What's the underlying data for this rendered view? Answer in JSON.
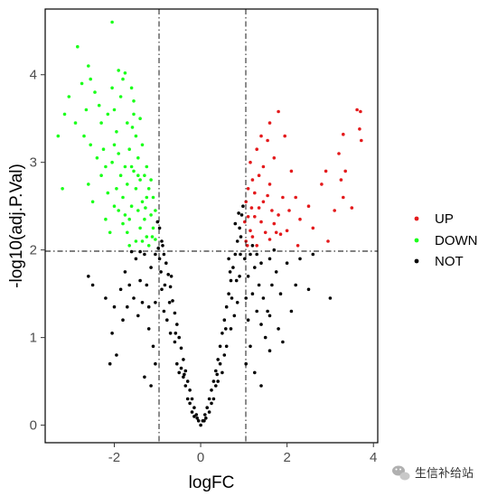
{
  "chart_data": {
    "type": "scatter",
    "title": "",
    "xlabel": "logFC",
    "ylabel": "-log10(adj.P.Val)",
    "xlim": [
      -3.6,
      4.1
    ],
    "ylim": [
      -0.2,
      4.75
    ],
    "xticks": [
      -2,
      0,
      2,
      4
    ],
    "yticks": [
      0,
      1,
      2,
      3,
      4
    ],
    "xtick_labels": [
      "-2",
      "0",
      "2",
      "4"
    ],
    "ytick_labels": [
      "0",
      "1",
      "2",
      "3",
      "4"
    ],
    "grid": false,
    "thresholds": {
      "vertical_lines": [
        -1,
        1
      ],
      "horizontal_line": 2
    },
    "legend": {
      "position": "right",
      "entries": [
        {
          "label": "UP",
          "color": "#e41a1c"
        },
        {
          "label": "DOWN",
          "color": "#1aff1a"
        },
        {
          "label": "NOT",
          "color": "#000000"
        }
      ]
    },
    "series": [
      {
        "name": "UP",
        "color": "#e41a1c",
        "points": [
          [
            3.7,
            3.58
          ],
          [
            3.62,
            3.6
          ],
          [
            3.68,
            3.38
          ],
          [
            3.72,
            3.25
          ],
          [
            3.3,
            3.32
          ],
          [
            3.2,
            3.1
          ],
          [
            3.35,
            2.9
          ],
          [
            3.25,
            2.8
          ],
          [
            3.3,
            2.6
          ],
          [
            3.5,
            2.48
          ],
          [
            2.9,
            2.9
          ],
          [
            2.8,
            2.75
          ],
          [
            3.1,
            2.45
          ],
          [
            2.95,
            2.1
          ],
          [
            2.6,
            2.25
          ],
          [
            1.95,
            3.3
          ],
          [
            1.8,
            3.58
          ],
          [
            1.6,
            3.45
          ],
          [
            1.55,
            3.25
          ],
          [
            1.4,
            3.3
          ],
          [
            1.3,
            3.15
          ],
          [
            1.7,
            3.05
          ],
          [
            1.6,
            2.75
          ],
          [
            2.1,
            2.9
          ],
          [
            2.2,
            2.6
          ],
          [
            2.05,
            2.45
          ],
          [
            1.15,
            3.0
          ],
          [
            1.2,
            2.8
          ],
          [
            1.05,
            2.55
          ],
          [
            1.1,
            2.38
          ],
          [
            1.25,
            2.65
          ],
          [
            1.35,
            2.48
          ],
          [
            1.4,
            2.32
          ],
          [
            1.5,
            2.2
          ],
          [
            1.6,
            2.12
          ],
          [
            1.7,
            2.3
          ],
          [
            1.8,
            2.4
          ],
          [
            1.85,
            2.18
          ],
          [
            2.25,
            2.05
          ],
          [
            1.05,
            2.1
          ],
          [
            1.15,
            2.22
          ],
          [
            1.3,
            2.05
          ],
          [
            1.45,
            2.55
          ],
          [
            1.55,
            2.62
          ],
          [
            1.9,
            2.6
          ],
          [
            2.0,
            2.22
          ],
          [
            1.25,
            2.38
          ],
          [
            1.65,
            2.45
          ],
          [
            1.2,
            2.15
          ],
          [
            1.1,
            2.7
          ],
          [
            1.35,
            2.85
          ],
          [
            1.45,
            2.95
          ],
          [
            1.75,
            2.2
          ],
          [
            2.3,
            2.35
          ],
          [
            2.5,
            2.5
          ],
          [
            1.02,
            2.32
          ],
          [
            1.08,
            2.05
          ],
          [
            1.18,
            2.48
          ]
        ]
      },
      {
        "name": "DOWN",
        "color": "#1aff1a",
        "points": [
          [
            -2.05,
            4.6
          ],
          [
            -2.85,
            4.32
          ],
          [
            -3.3,
            3.3
          ],
          [
            -3.2,
            2.7
          ],
          [
            -3.15,
            3.55
          ],
          [
            -3.05,
            3.75
          ],
          [
            -2.9,
            3.45
          ],
          [
            -2.75,
            3.9
          ],
          [
            -2.6,
            4.1
          ],
          [
            -2.55,
            3.95
          ],
          [
            -2.65,
            3.6
          ],
          [
            -2.55,
            3.2
          ],
          [
            -2.6,
            2.75
          ],
          [
            -2.5,
            2.55
          ],
          [
            -2.45,
            3.8
          ],
          [
            -2.35,
            3.65
          ],
          [
            -2.3,
            3.45
          ],
          [
            -2.25,
            3.15
          ],
          [
            -2.2,
            2.95
          ],
          [
            -2.15,
            2.65
          ],
          [
            -2.2,
            2.35
          ],
          [
            -2.1,
            2.2
          ],
          [
            -2.05,
            3.85
          ],
          [
            -2.0,
            3.6
          ],
          [
            -1.95,
            3.35
          ],
          [
            -1.9,
            3.1
          ],
          [
            -1.85,
            2.85
          ],
          [
            -1.8,
            2.6
          ],
          [
            -1.75,
            2.4
          ],
          [
            -1.7,
            2.2
          ],
          [
            -1.65,
            2.05
          ],
          [
            -1.9,
            4.05
          ],
          [
            -1.75,
            4.02
          ],
          [
            -1.6,
            3.85
          ],
          [
            -1.55,
            3.55
          ],
          [
            -1.5,
            3.3
          ],
          [
            -1.45,
            3.05
          ],
          [
            -1.4,
            2.8
          ],
          [
            -1.35,
            2.55
          ],
          [
            -1.3,
            2.35
          ],
          [
            -1.25,
            2.15
          ],
          [
            -1.2,
            2.05
          ],
          [
            -1.6,
            2.95
          ],
          [
            -1.5,
            2.7
          ],
          [
            -1.45,
            2.45
          ],
          [
            -1.4,
            2.25
          ],
          [
            -1.3,
            2.85
          ],
          [
            -1.25,
            2.6
          ],
          [
            -1.15,
            2.4
          ],
          [
            -1.1,
            2.25
          ],
          [
            -1.05,
            2.12
          ],
          [
            -1.2,
            2.7
          ],
          [
            -1.1,
            2.6
          ],
          [
            -1.05,
            2.45
          ],
          [
            -1.85,
            3.75
          ],
          [
            -2.0,
            3.2
          ],
          [
            -1.7,
            3.45
          ],
          [
            -1.65,
            3.15
          ],
          [
            -1.55,
            2.9
          ],
          [
            -1.35,
            3.2
          ],
          [
            -1.25,
            2.95
          ],
          [
            -1.15,
            2.8
          ],
          [
            -2.3,
            2.85
          ],
          [
            -2.4,
            3.05
          ],
          [
            -2.0,
            2.5
          ],
          [
            -1.8,
            2.3
          ],
          [
            -1.6,
            2.5
          ],
          [
            -1.5,
            2.1
          ],
          [
            -1.35,
            2.1
          ],
          [
            -2.15,
            3.55
          ],
          [
            -1.95,
            2.7
          ],
          [
            -1.7,
            2.75
          ],
          [
            -1.4,
            3.5
          ],
          [
            -1.55,
            3.7
          ],
          [
            -1.8,
            3.95
          ],
          [
            -2.7,
            3.3
          ],
          [
            -1.65,
            2.35
          ],
          [
            -1.45,
            2.85
          ],
          [
            -1.28,
            2.48
          ],
          [
            -1.12,
            2.15
          ],
          [
            -1.9,
            2.45
          ],
          [
            -1.75,
            2.95
          ],
          [
            -2.05,
            3.0
          ],
          [
            -1.58,
            3.4
          ]
        ]
      },
      {
        "name": "NOT",
        "color": "#000000",
        "points": [
          [
            0.0,
            0.0
          ],
          [
            0.05,
            0.05
          ],
          [
            -0.05,
            0.05
          ],
          [
            0.1,
            0.12
          ],
          [
            -0.1,
            0.12
          ],
          [
            0.15,
            0.2
          ],
          [
            -0.15,
            0.2
          ],
          [
            0.2,
            0.3
          ],
          [
            -0.2,
            0.3
          ],
          [
            0.25,
            0.4
          ],
          [
            -0.25,
            0.4
          ],
          [
            0.3,
            0.5
          ],
          [
            -0.3,
            0.5
          ],
          [
            0.35,
            0.62
          ],
          [
            -0.35,
            0.62
          ],
          [
            0.4,
            0.75
          ],
          [
            -0.4,
            0.75
          ],
          [
            0.45,
            0.9
          ],
          [
            -0.45,
            0.88
          ],
          [
            0.5,
            1.05
          ],
          [
            -0.5,
            1.0
          ],
          [
            0.55,
            1.2
          ],
          [
            -0.55,
            1.15
          ],
          [
            0.6,
            1.35
          ],
          [
            -0.6,
            1.28
          ],
          [
            0.65,
            1.5
          ],
          [
            -0.65,
            1.42
          ],
          [
            0.7,
            1.65
          ],
          [
            -0.7,
            1.58
          ],
          [
            0.75,
            1.8
          ],
          [
            -0.75,
            1.72
          ],
          [
            0.8,
            1.95
          ],
          [
            -0.8,
            1.85
          ],
          [
            0.85,
            2.1
          ],
          [
            -0.85,
            1.95
          ],
          [
            0.9,
            2.25
          ],
          [
            0.95,
            2.4
          ],
          [
            -0.9,
            2.1
          ],
          [
            -0.95,
            2.25
          ],
          [
            -1.0,
            2.32
          ],
          [
            0.98,
            2.5
          ],
          [
            1.02,
            1.9
          ],
          [
            1.1,
            1.7
          ],
          [
            1.2,
            1.5
          ],
          [
            1.3,
            1.3
          ],
          [
            1.4,
            1.15
          ],
          [
            1.5,
            1.0
          ],
          [
            1.6,
            0.85
          ],
          [
            1.15,
            1.95
          ],
          [
            1.25,
            1.8
          ],
          [
            1.35,
            1.6
          ],
          [
            1.45,
            1.45
          ],
          [
            1.55,
            1.3
          ],
          [
            1.65,
            1.6
          ],
          [
            1.75,
            1.75
          ],
          [
            1.85,
            1.5
          ],
          [
            2.0,
            1.85
          ],
          [
            2.2,
            1.6
          ],
          [
            2.5,
            1.55
          ],
          [
            3.0,
            1.45
          ],
          [
            2.6,
            1.95
          ],
          [
            2.3,
            1.9
          ],
          [
            -1.05,
            1.95
          ],
          [
            -1.15,
            1.8
          ],
          [
            -1.25,
            1.6
          ],
          [
            -1.35,
            1.4
          ],
          [
            -1.45,
            1.25
          ],
          [
            -1.55,
            1.45
          ],
          [
            -1.65,
            1.6
          ],
          [
            -1.75,
            1.75
          ],
          [
            -1.85,
            1.55
          ],
          [
            -2.0,
            1.35
          ],
          [
            -2.05,
            1.05
          ],
          [
            -2.2,
            1.45
          ],
          [
            -2.5,
            1.6
          ],
          [
            -2.6,
            1.7
          ],
          [
            -1.2,
            1.1
          ],
          [
            -1.1,
            0.9
          ],
          [
            -1.05,
            0.7
          ],
          [
            -1.3,
            0.55
          ],
          [
            -1.15,
            0.45
          ],
          [
            1.05,
            0.7
          ],
          [
            1.15,
            0.9
          ],
          [
            1.25,
            0.6
          ],
          [
            1.4,
            0.45
          ],
          [
            1.1,
            1.2
          ],
          [
            -1.2,
            1.35
          ],
          [
            -1.4,
            1.65
          ],
          [
            -1.5,
            1.9
          ],
          [
            -1.6,
            1.98
          ],
          [
            1.6,
            1.9
          ],
          [
            1.7,
            2.0
          ],
          [
            1.4,
            1.85
          ],
          [
            0.3,
            0.3
          ],
          [
            -0.3,
            0.3
          ],
          [
            0.2,
            0.15
          ],
          [
            -0.2,
            0.15
          ],
          [
            0.55,
            0.8
          ],
          [
            -0.55,
            0.7
          ],
          [
            0.7,
            1.1
          ],
          [
            -0.7,
            1.05
          ],
          [
            0.85,
            1.4
          ],
          [
            -0.85,
            1.3
          ],
          [
            0.9,
            1.7
          ],
          [
            -0.9,
            1.55
          ],
          [
            0.6,
            0.9
          ],
          [
            -0.6,
            0.95
          ],
          [
            0.4,
            0.5
          ],
          [
            -0.4,
            0.55
          ],
          [
            0.78,
            1.25
          ],
          [
            -0.78,
            1.2
          ],
          [
            0.92,
            1.95
          ],
          [
            -0.92,
            1.75
          ],
          [
            0.65,
            1.9
          ],
          [
            0.8,
            2.3
          ],
          [
            0.88,
            2.42
          ],
          [
            -0.98,
            2.02
          ],
          [
            -0.95,
            1.9
          ],
          [
            1.05,
            1.45
          ],
          [
            -1.05,
            1.4
          ],
          [
            0.5,
            0.6
          ],
          [
            -0.5,
            0.6
          ],
          [
            0.72,
            1.45
          ],
          [
            -0.72,
            1.4
          ],
          [
            0.83,
            1.65
          ],
          [
            -0.83,
            1.6
          ],
          [
            0.45,
            0.7
          ],
          [
            -0.45,
            0.65
          ],
          [
            0.35,
            0.45
          ],
          [
            -0.35,
            0.45
          ],
          [
            0.58,
            1.1
          ],
          [
            -0.58,
            1.05
          ],
          [
            -1.95,
            0.8
          ],
          [
            -2.1,
            0.7
          ],
          [
            -1.8,
            1.2
          ],
          [
            1.8,
            1.1
          ],
          [
            1.9,
            0.95
          ],
          [
            2.1,
            1.3
          ],
          [
            -0.15,
            0.1
          ],
          [
            0.12,
            0.08
          ],
          [
            -0.08,
            0.08
          ],
          [
            0.08,
            0.05
          ],
          [
            0.93,
            2.15
          ],
          [
            -0.88,
            2.05
          ],
          [
            0.68,
            1.75
          ],
          [
            -0.68,
            1.7
          ],
          [
            1.3,
            1.95
          ],
          [
            1.2,
            2.05
          ],
          [
            -1.3,
            1.95
          ],
          [
            -1.4,
            1.98
          ],
          [
            1.6,
            1.25
          ],
          [
            -1.7,
            1.35
          ],
          [
            0.25,
            0.25
          ],
          [
            -0.25,
            0.25
          ],
          [
            0.38,
            0.58
          ],
          [
            -0.38,
            0.58
          ]
        ]
      }
    ]
  },
  "watermark": {
    "text": "生信补给站",
    "icon": "wechat-icon"
  }
}
